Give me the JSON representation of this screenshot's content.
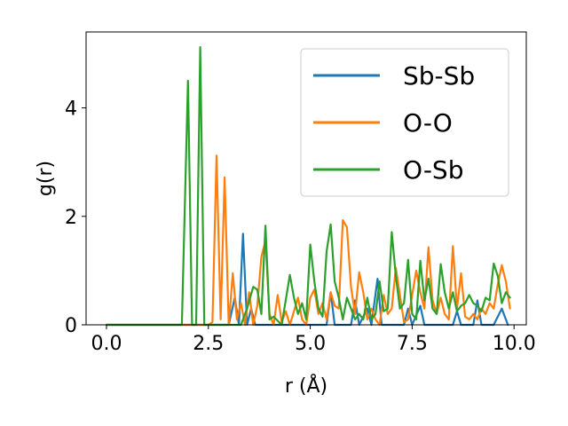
{
  "chart_data": {
    "type": "line",
    "xlabel": "r (Å)",
    "ylabel": "g(r)",
    "xlim": [
      -0.5,
      10.3
    ],
    "ylim": [
      0,
      5.4
    ],
    "xticks": [
      "0.0",
      "2.5",
      "5.0",
      "7.5",
      "10.0"
    ],
    "xtick_values": [
      0,
      2.5,
      5,
      7.5,
      10
    ],
    "yticks": [
      "0",
      "2",
      "4"
    ],
    "ytick_values": [
      0,
      2,
      4
    ],
    "grid": false,
    "legend_position": "upper right",
    "series": [
      {
        "name": "Sb-Sb",
        "color": "#1f77b4",
        "points": [
          [
            0,
            0
          ],
          [
            3.0,
            0
          ],
          [
            3.15,
            0.5
          ],
          [
            3.25,
            0
          ],
          [
            3.35,
            1.68
          ],
          [
            3.45,
            0
          ],
          [
            3.55,
            0.3
          ],
          [
            3.65,
            0
          ],
          [
            5.4,
            0
          ],
          [
            5.5,
            0.6
          ],
          [
            5.6,
            0
          ],
          [
            6.0,
            0
          ],
          [
            6.1,
            0.45
          ],
          [
            6.2,
            0
          ],
          [
            6.4,
            0.3
          ],
          [
            6.5,
            0
          ],
          [
            6.65,
            0.85
          ],
          [
            6.75,
            0
          ],
          [
            7.3,
            0
          ],
          [
            7.4,
            0.3
          ],
          [
            7.5,
            0
          ],
          [
            7.7,
            0.35
          ],
          [
            7.8,
            0
          ],
          [
            8.5,
            0
          ],
          [
            8.6,
            0.25
          ],
          [
            8.7,
            0
          ],
          [
            9.0,
            0
          ],
          [
            9.1,
            0.45
          ],
          [
            9.2,
            0
          ],
          [
            9.5,
            0
          ],
          [
            9.7,
            0.3
          ],
          [
            9.85,
            0
          ]
        ]
      },
      {
        "name": "O-O",
        "color": "#ff7f0e",
        "points": [
          [
            0,
            0
          ],
          [
            2.5,
            0
          ],
          [
            2.6,
            0.05
          ],
          [
            2.7,
            3.12
          ],
          [
            2.8,
            0.1
          ],
          [
            2.9,
            2.72
          ],
          [
            3.0,
            0
          ],
          [
            3.1,
            0.95
          ],
          [
            3.2,
            0.1
          ],
          [
            3.3,
            0.4
          ],
          [
            3.4,
            0
          ],
          [
            3.5,
            0.6
          ],
          [
            3.6,
            0
          ],
          [
            3.7,
            0.35
          ],
          [
            3.8,
            1.25
          ],
          [
            3.9,
            1.55
          ],
          [
            4.0,
            0.2
          ],
          [
            4.1,
            0
          ],
          [
            4.2,
            0.55
          ],
          [
            4.3,
            0.05
          ],
          [
            4.4,
            0.25
          ],
          [
            4.5,
            0
          ],
          [
            4.7,
            0.5
          ],
          [
            4.8,
            0.1
          ],
          [
            4.9,
            0
          ],
          [
            5.0,
            0.5
          ],
          [
            5.1,
            0.65
          ],
          [
            5.2,
            0.2
          ],
          [
            5.3,
            0.4
          ],
          [
            5.4,
            0.1
          ],
          [
            5.5,
            0.6
          ],
          [
            5.6,
            0.35
          ],
          [
            5.7,
            0.3
          ],
          [
            5.8,
            1.93
          ],
          [
            5.9,
            1.8
          ],
          [
            6.0,
            0.7
          ],
          [
            6.1,
            0.2
          ],
          [
            6.2,
            0.97
          ],
          [
            6.3,
            0.6
          ],
          [
            6.4,
            0.1
          ],
          [
            6.5,
            0.3
          ],
          [
            6.6,
            0.1
          ],
          [
            6.7,
            0
          ],
          [
            6.8,
            0.55
          ],
          [
            6.9,
            0.2
          ],
          [
            7.0,
            0.3
          ],
          [
            7.1,
            1.05
          ],
          [
            7.2,
            0.55
          ],
          [
            7.3,
            0.05
          ],
          [
            7.4,
            0.1
          ],
          [
            7.5,
            0.55
          ],
          [
            7.6,
            1.0
          ],
          [
            7.7,
            0.6
          ],
          [
            7.8,
            0.3
          ],
          [
            7.9,
            1.43
          ],
          [
            8.0,
            0.45
          ],
          [
            8.1,
            0.2
          ],
          [
            8.2,
            0.5
          ],
          [
            8.3,
            0.2
          ],
          [
            8.4,
            0.1
          ],
          [
            8.5,
            1.45
          ],
          [
            8.6,
            0.3
          ],
          [
            8.7,
            0.95
          ],
          [
            8.8,
            0.15
          ],
          [
            8.9,
            0.1
          ],
          [
            9.0,
            0.2
          ],
          [
            9.1,
            0.1
          ],
          [
            9.2,
            0.3
          ],
          [
            9.3,
            0.2
          ],
          [
            9.4,
            0.4
          ],
          [
            9.5,
            0.3
          ],
          [
            9.6,
            0.75
          ],
          [
            9.7,
            1.1
          ],
          [
            9.8,
            0.8
          ],
          [
            9.9,
            0.3
          ]
        ]
      },
      {
        "name": "O-Sb",
        "color": "#2ca02c",
        "points": [
          [
            0,
            0
          ],
          [
            1.85,
            0
          ],
          [
            2.0,
            4.5
          ],
          [
            2.1,
            0
          ],
          [
            2.2,
            0
          ],
          [
            2.3,
            5.12
          ],
          [
            2.4,
            0
          ],
          [
            3.3,
            0
          ],
          [
            3.45,
            0.3
          ],
          [
            3.6,
            0.7
          ],
          [
            3.7,
            0.65
          ],
          [
            3.8,
            0.2
          ],
          [
            3.9,
            1.83
          ],
          [
            4.0,
            0.1
          ],
          [
            4.1,
            0.15
          ],
          [
            4.3,
            0
          ],
          [
            4.5,
            0.92
          ],
          [
            4.6,
            0.5
          ],
          [
            4.7,
            0.2
          ],
          [
            4.8,
            0.4
          ],
          [
            4.9,
            0.1
          ],
          [
            5.0,
            1.48
          ],
          [
            5.1,
            0.8
          ],
          [
            5.2,
            0.3
          ],
          [
            5.3,
            0.15
          ],
          [
            5.4,
            1.35
          ],
          [
            5.5,
            1.85
          ],
          [
            5.6,
            0.8
          ],
          [
            5.7,
            0.5
          ],
          [
            5.8,
            0.1
          ],
          [
            5.9,
            0.5
          ],
          [
            6.0,
            0.3
          ],
          [
            6.1,
            0.1
          ],
          [
            6.2,
            0.2
          ],
          [
            6.3,
            0.1
          ],
          [
            6.4,
            0.5
          ],
          [
            6.5,
            0.1
          ],
          [
            6.6,
            0.2
          ],
          [
            6.7,
            0.8
          ],
          [
            6.8,
            0.25
          ],
          [
            6.9,
            0.3
          ],
          [
            7.0,
            1.71
          ],
          [
            7.1,
            0.9
          ],
          [
            7.2,
            0.3
          ],
          [
            7.3,
            0.4
          ],
          [
            7.4,
            1.2
          ],
          [
            7.5,
            0.2
          ],
          [
            7.6,
            0.1
          ],
          [
            7.7,
            1.18
          ],
          [
            7.8,
            0.45
          ],
          [
            7.9,
            0.85
          ],
          [
            8.0,
            0.3
          ],
          [
            8.1,
            0.2
          ],
          [
            8.2,
            1.12
          ],
          [
            8.3,
            0.6
          ],
          [
            8.4,
            0.3
          ],
          [
            8.5,
            0.6
          ],
          [
            8.6,
            0.25
          ],
          [
            8.7,
            0.35
          ],
          [
            8.8,
            0.4
          ],
          [
            8.9,
            0.55
          ],
          [
            9.0,
            0.4
          ],
          [
            9.1,
            0.35
          ],
          [
            9.2,
            0.25
          ],
          [
            9.3,
            0.5
          ],
          [
            9.4,
            0.45
          ],
          [
            9.5,
            1.13
          ],
          [
            9.6,
            0.9
          ],
          [
            9.7,
            0.4
          ],
          [
            9.8,
            0.6
          ],
          [
            9.9,
            0.5
          ]
        ]
      }
    ]
  }
}
